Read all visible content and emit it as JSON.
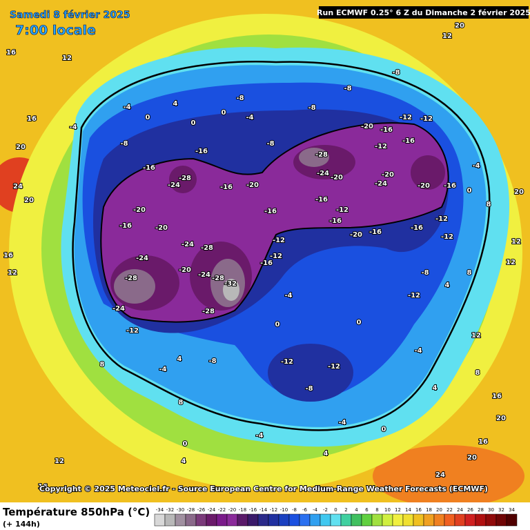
{
  "header": {
    "date": "Samedi 8 février 2025",
    "time": "7:00 locale",
    "run": "Run ECMWF 0.25° 6 Z du Dimanche 2 février 2025"
  },
  "copyright": "Copyright © 2025 Meteociel.fr - Source European Centre for Medium-Range Weather Forecasts (ECMWF)",
  "legend": {
    "title": "Température 850hPa (°C)",
    "subtitle": "(+ 144h)",
    "ticks": [
      -34,
      -32,
      -30,
      -28,
      -26,
      -24,
      -22,
      -20,
      -18,
      -16,
      -14,
      -12,
      -10,
      -8,
      -6,
      -4,
      -2,
      0,
      2,
      4,
      6,
      8,
      10,
      12,
      14,
      16,
      18,
      20,
      22,
      24,
      26,
      28,
      30,
      32,
      34
    ],
    "colors": [
      "#d8d8d8",
      "#b8b8b8",
      "#a090a0",
      "#8a6a8a",
      "#7a3a7a",
      "#6a1a6a",
      "#7a1a8a",
      "#8a2a9a",
      "#5a1a6a",
      "#3a1a6a",
      "#2a2a8a",
      "#2030a0",
      "#1a40c0",
      "#1a50e0",
      "#2a70f0",
      "#30a0f0",
      "#40c8f0",
      "#60e0f0",
      "#40d0a0",
      "#40c060",
      "#60d040",
      "#a0e040",
      "#d0f040",
      "#f0f040",
      "#f0e030",
      "#f0c020",
      "#f0a020",
      "#f08020",
      "#f06020",
      "#e04020",
      "#d02020",
      "#b01010",
      "#900a0a",
      "#700505",
      "#500000"
    ]
  },
  "map": {
    "labels": [
      16,
      12,
      16,
      20,
      24,
      20,
      16,
      12,
      8,
      8,
      4,
      0,
      4,
      12,
      16,
      -4,
      -8,
      -16,
      -28,
      -24,
      -20,
      -16,
      -20,
      -24,
      -28,
      -24,
      -28,
      -24,
      -28,
      -32,
      -20,
      -24,
      -28,
      -12,
      -16,
      -20,
      -16,
      -12,
      -12,
      -16,
      -4,
      0,
      0,
      -8,
      -4,
      -12,
      -12,
      -8,
      -4,
      -4,
      0,
      4,
      -28,
      -24,
      -20,
      -20,
      -16,
      -12,
      -16,
      -12,
      -12,
      -20,
      -24,
      -20,
      -16,
      -12,
      -16,
      -12,
      -16,
      -20,
      -16,
      -12,
      -16,
      -8,
      -8,
      -8,
      -4,
      0,
      8,
      12,
      12,
      8,
      4,
      -12,
      -8,
      -4,
      4,
      8,
      12,
      16,
      20,
      16,
      20,
      24,
      20,
      12,
      20,
      0,
      0,
      4,
      -4,
      -8,
      -16,
      0,
      -8,
      -4
    ]
  }
}
